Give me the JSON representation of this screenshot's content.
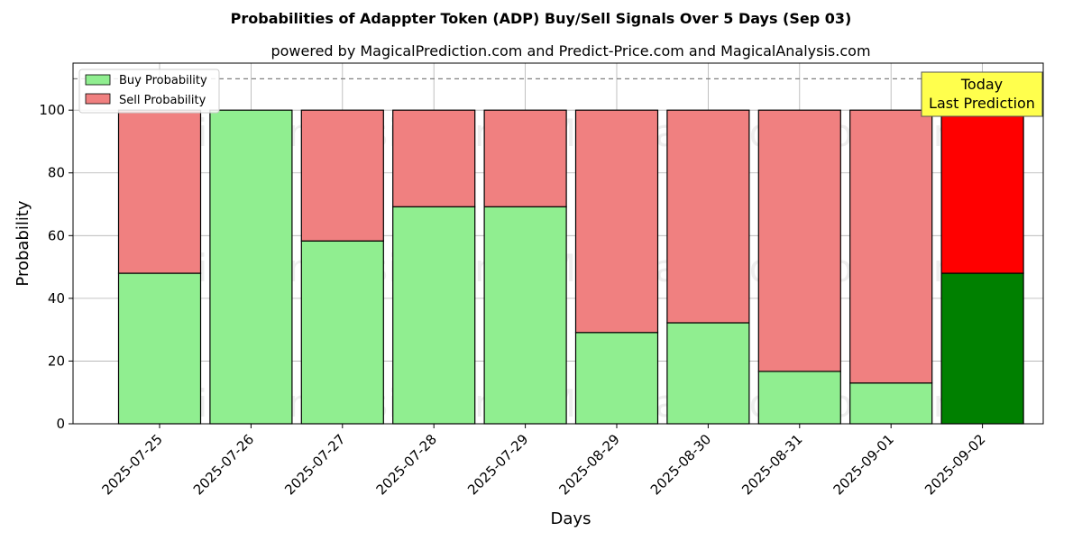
{
  "chart_data": {
    "type": "bar",
    "stacked": true,
    "title": "Probabilities of Adappter Token (ADP) Buy/Sell Signals Over 5 Days (Sep 03)",
    "subtitle": "powered by MagicalPrediction.com and Predict-Price.com and MagicalAnalysis.com",
    "xlabel": "Days",
    "ylabel": "Probability",
    "ylim": [
      0,
      115
    ],
    "yticks": [
      0,
      20,
      40,
      60,
      80,
      100
    ],
    "grid": true,
    "legend_position": "top-left",
    "categories": [
      "2025-07-25",
      "2025-07-26",
      "2025-07-27",
      "2025-07-28",
      "2025-07-29",
      "2025-08-29",
      "2025-08-30",
      "2025-08-31",
      "2025-09-01",
      "2025-09-02"
    ],
    "series": [
      {
        "name": "Buy Probability",
        "color": "#90ee90",
        "highlight_color": "#008000",
        "values": [
          48,
          100,
          58.3,
          69.2,
          69.2,
          29.1,
          32.2,
          16.7,
          13,
          48
        ]
      },
      {
        "name": "Sell Probability",
        "color": "#f08080",
        "highlight_color": "#ff0000",
        "values": [
          52,
          0,
          41.7,
          30.8,
          30.8,
          70.9,
          67.8,
          83.3,
          87,
          52
        ]
      }
    ],
    "highlight_index": 9,
    "reference_line": {
      "value": 110,
      "style": "dashed"
    },
    "annotation": {
      "lines": [
        "Today",
        "Last Prediction"
      ],
      "background": "#ffff4d"
    },
    "watermarks": [
      "MagicalAnalysis.com",
      "MagicalPrediction.com"
    ]
  }
}
